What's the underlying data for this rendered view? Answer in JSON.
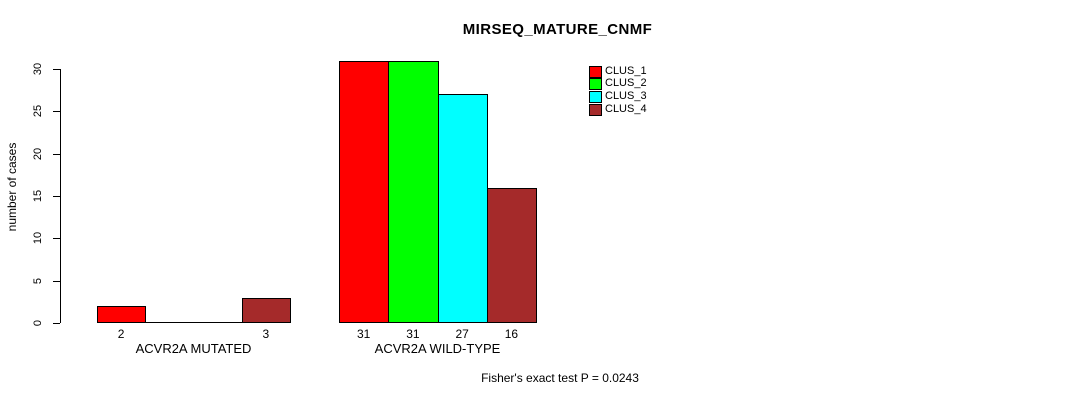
{
  "chart_data": {
    "type": "bar",
    "title": "MIRSEQ_MATURE_CNMF",
    "ylabel": "number of cases",
    "xlabel": "",
    "ylim": [
      0,
      31
    ],
    "yticks": [
      0,
      5,
      10,
      15,
      20,
      25,
      30
    ],
    "grid": false,
    "legend_position": "top-right",
    "series": [
      {
        "name": "CLUS_1",
        "color": "#ff0000"
      },
      {
        "name": "CLUS_2",
        "color": "#00ff00"
      },
      {
        "name": "CLUS_3",
        "color": "#00ffff"
      },
      {
        "name": "CLUS_4",
        "color": "#a52a2a"
      }
    ],
    "groups": [
      {
        "label": "ACVR2A MUTATED",
        "values": [
          2,
          0,
          0,
          3
        ],
        "bar_labels": [
          "2",
          "",
          "",
          "3"
        ]
      },
      {
        "label": "ACVR2A WILD-TYPE",
        "values": [
          31,
          31,
          27,
          16
        ],
        "bar_labels": [
          "31",
          "31",
          "27",
          "16"
        ]
      }
    ],
    "footnote": "Fisher's exact test P = 0.0243"
  }
}
